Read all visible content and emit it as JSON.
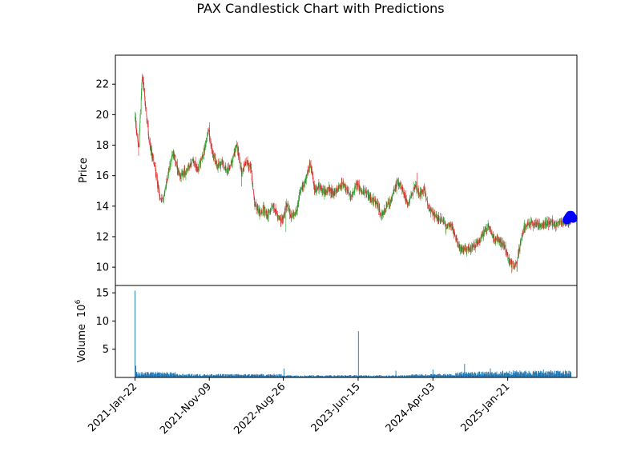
{
  "chart_data": [
    {
      "type": "candlestick",
      "title": "PAX Candlestick Chart with Predictions",
      "ylabel": "Price",
      "ylim": [
        8.8,
        23.9
      ],
      "y_ticks": [
        10,
        12,
        14,
        16,
        18,
        20,
        22
      ],
      "x_ticks": [
        "2021-Jan-22",
        "2021-Nov-09",
        "2022-Aug-26",
        "2023-Jun-15",
        "2024-Apr-03",
        "2025-Jan-21"
      ],
      "x_tick_dates": [
        "2021-01-22",
        "2021-11-09",
        "2022-08-26",
        "2023-06-15",
        "2024-04-03",
        "2025-01-21"
      ],
      "x_range": [
        "2020-11-06",
        "2025-10-19"
      ],
      "up_color": "#2ca02c",
      "down_color": "#d62728",
      "series": [
        {
          "data_kind": "close_price_anchors",
          "x": [
            "2021-01-22",
            "2021-02-05",
            "2021-02-20",
            "2021-03-05",
            "2021-03-20",
            "2021-04-10",
            "2021-05-01",
            "2021-05-15",
            "2021-06-01",
            "2021-06-20",
            "2021-07-15",
            "2021-08-10",
            "2021-09-05",
            "2021-09-25",
            "2021-10-15",
            "2021-11-05",
            "2021-11-20",
            "2021-12-10",
            "2022-01-01",
            "2022-01-20",
            "2022-02-05",
            "2022-02-25",
            "2022-03-15",
            "2022-04-01",
            "2022-04-20",
            "2022-05-05",
            "2022-05-25",
            "2022-06-10",
            "2022-06-25",
            "2022-07-15",
            "2022-08-01",
            "2022-08-20",
            "2022-09-10",
            "2022-09-25",
            "2022-10-15",
            "2022-11-01",
            "2022-11-20",
            "2022-12-10",
            "2022-12-28",
            "2023-01-15",
            "2023-02-01",
            "2023-02-20",
            "2023-03-10",
            "2023-03-28",
            "2023-04-15",
            "2023-05-01",
            "2023-05-20",
            "2023-06-10",
            "2023-06-25",
            "2023-07-15",
            "2023-08-05",
            "2023-08-25",
            "2023-09-15",
            "2023-10-05",
            "2023-10-25",
            "2023-11-15",
            "2023-12-05",
            "2023-12-25",
            "2024-01-10",
            "2024-01-25",
            "2024-02-10",
            "2024-02-28",
            "2024-03-15",
            "2024-04-01",
            "2024-04-20",
            "2024-05-10",
            "2024-05-25",
            "2024-06-15",
            "2024-07-01",
            "2024-07-20",
            "2024-08-10",
            "2024-08-25",
            "2024-09-15",
            "2024-10-05",
            "2024-10-20",
            "2024-11-05",
            "2024-11-25",
            "2024-12-10",
            "2024-12-25",
            "2025-01-10",
            "2025-01-25",
            "2025-02-10",
            "2025-02-25",
            "2025-03-10",
            "2025-03-25",
            "2025-04-10",
            "2025-04-25",
            "2025-05-10",
            "2025-05-25",
            "2025-06-10",
            "2025-06-25",
            "2025-07-10",
            "2025-07-25",
            "2025-08-10",
            "2025-08-25",
            "2025-09-05",
            "2025-09-15",
            "2025-09-25"
          ],
          "close": [
            19.8,
            17.8,
            22.8,
            20.3,
            18.0,
            16.5,
            14.3,
            14.6,
            16.2,
            17.6,
            15.9,
            16.3,
            17.0,
            16.4,
            17.3,
            18.9,
            17.6,
            16.6,
            16.9,
            16.3,
            16.9,
            18.0,
            16.2,
            17.0,
            16.5,
            14.2,
            13.5,
            13.8,
            13.3,
            14.0,
            13.5,
            13.0,
            14.2,
            13.2,
            13.6,
            15.0,
            15.6,
            16.8,
            15.0,
            15.3,
            14.9,
            15.1,
            14.8,
            15.2,
            15.5,
            15.0,
            14.5,
            15.6,
            14.9,
            15.0,
            14.4,
            14.3,
            13.3,
            14.0,
            14.5,
            15.6,
            15.1,
            14.2,
            14.8,
            15.3,
            14.8,
            15.1,
            14.0,
            13.5,
            13.2,
            13.2,
            12.6,
            12.8,
            11.9,
            11.1,
            11.3,
            11.1,
            11.4,
            11.8,
            12.2,
            12.7,
            11.9,
            11.9,
            11.7,
            11.3,
            10.4,
            10.1,
            10.2,
            11.5,
            12.5,
            12.9,
            12.9,
            12.8,
            12.8,
            12.8,
            12.9,
            12.9,
            12.8,
            12.9,
            12.9,
            13.0,
            13.0,
            13.0
          ],
          "hi_extras": [
            [
              "2021-02-20",
              23.3
            ],
            [
              "2021-11-10",
              19.5
            ],
            [
              "2022-02-20",
              19.2
            ],
            [
              "2022-12-25",
              17.5
            ],
            [
              "2024-02-01",
              16.2
            ],
            [
              "2024-12-01",
              12.9
            ]
          ],
          "lo_extras": [
            [
              "2021-02-05",
              17.3
            ],
            [
              "2021-05-01",
              13.6
            ],
            [
              "2022-03-15",
              15.3
            ],
            [
              "2022-09-05",
              12.3
            ],
            [
              "2025-04-20",
              9.4
            ]
          ]
        },
        {
          "name": "Predictions",
          "kind": "scatter",
          "color": "#0000ff",
          "x": [
            "2025-09-10",
            "2025-09-14",
            "2025-09-18",
            "2025-09-22",
            "2025-09-26",
            "2025-09-30",
            "2025-10-04"
          ],
          "y": [
            13.1,
            13.2,
            13.3,
            13.4,
            13.4,
            13.3,
            13.2
          ]
        }
      ]
    },
    {
      "type": "bar",
      "ylabel": "Volume",
      "ylabel_unit": "10",
      "ylabel_unit_exp": "6",
      "ylim": [
        0,
        16.3
      ],
      "y_ticks": [
        5,
        10,
        15
      ],
      "color": "#1f77b4",
      "x_range": [
        "2020-11-06",
        "2025-10-19"
      ],
      "baseline": 0.45,
      "segments": [
        [
          "2021-01-22",
          "2021-06-30",
          0.7
        ],
        [
          "2021-07-01",
          "2022-08-31",
          0.45
        ],
        [
          "2022-09-01",
          "2023-12-31",
          0.3
        ],
        [
          "2024-01-01",
          "2024-06-30",
          0.45
        ],
        [
          "2024-07-01",
          "2024-12-31",
          0.75
        ],
        [
          "2025-01-01",
          "2025-09-28",
          0.9
        ]
      ],
      "spikes": [
        [
          "2021-01-22",
          15.4
        ],
        [
          "2021-01-25",
          2.1
        ],
        [
          "2021-01-29",
          1.0
        ],
        [
          "2022-08-29",
          1.6
        ],
        [
          "2023-06-16",
          8.2
        ],
        [
          "2023-11-10",
          1.2
        ],
        [
          "2024-04-03",
          1.4
        ],
        [
          "2024-08-05",
          2.4
        ],
        [
          "2024-11-14",
          1.6
        ],
        [
          "2025-06-10",
          1.4
        ]
      ]
    }
  ]
}
